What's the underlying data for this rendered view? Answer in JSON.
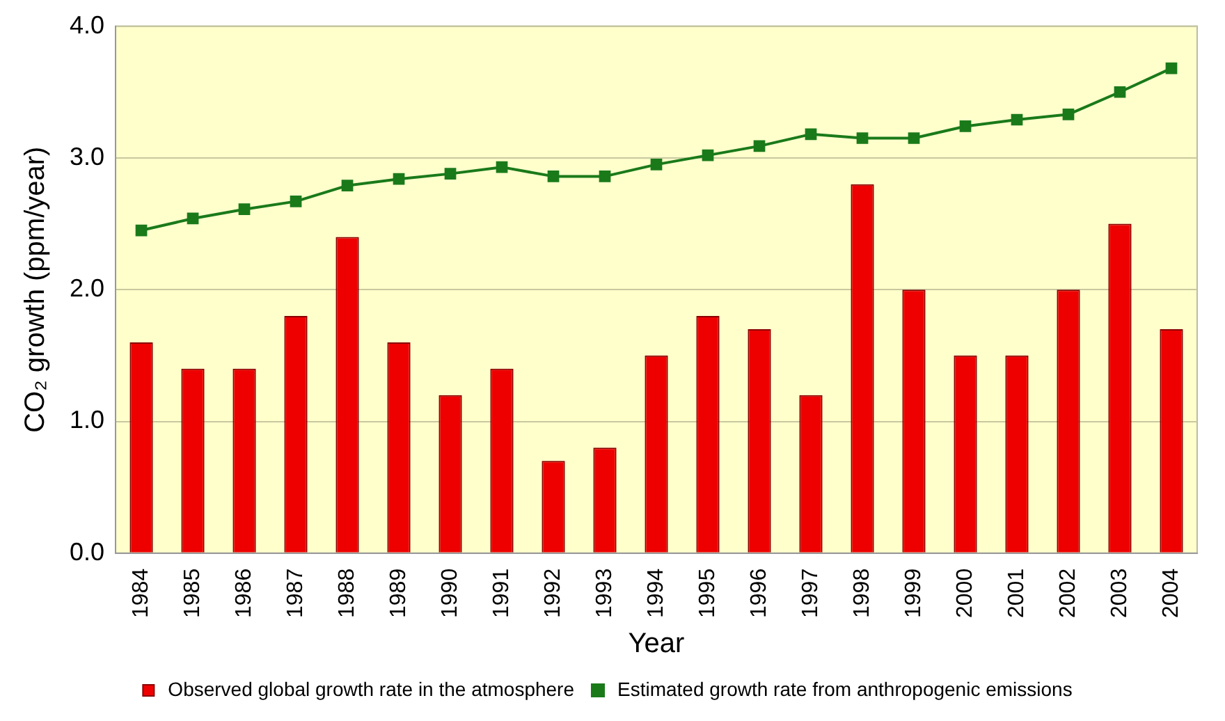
{
  "chart_data": {
    "type": "bar",
    "xlabel": "Year",
    "ylabel": "CO₂ growth (ppm/year)",
    "categories": [
      "1984",
      "1985",
      "1986",
      "1987",
      "1988",
      "1989",
      "1990",
      "1991",
      "1992",
      "1993",
      "1994",
      "1995",
      "1996",
      "1997",
      "1998",
      "1999",
      "2000",
      "2001",
      "2002",
      "2003",
      "2004"
    ],
    "series": [
      {
        "name": "Observed global growth rate in the atmosphere",
        "color": "#ee0000",
        "values": [
          1.6,
          1.4,
          1.4,
          1.8,
          2.4,
          1.6,
          1.2,
          1.4,
          0.7,
          0.8,
          1.5,
          1.8,
          1.7,
          1.2,
          2.8,
          2.0,
          1.5,
          1.5,
          2.0,
          2.5,
          1.7
        ]
      },
      {
        "name": "Estimated growth rate from anthropogenic emissions",
        "type": "line",
        "color": "#1a7a1a",
        "marker": "square",
        "values": [
          2.45,
          2.54,
          2.61,
          2.67,
          2.79,
          2.84,
          2.88,
          2.93,
          2.86,
          2.86,
          2.95,
          3.02,
          3.09,
          3.18,
          3.15,
          3.15,
          3.24,
          3.29,
          3.33,
          3.5,
          3.68
        ]
      }
    ],
    "ylim": [
      0,
      4
    ],
    "yticks": [
      {
        "value": 0,
        "label": "0.0"
      },
      {
        "value": 1,
        "label": "1.0"
      },
      {
        "value": 2,
        "label": "2.0"
      },
      {
        "value": 3,
        "label": "3.0"
      },
      {
        "value": 4,
        "label": "4.0"
      }
    ],
    "grid": "y",
    "legend": "bottom"
  }
}
